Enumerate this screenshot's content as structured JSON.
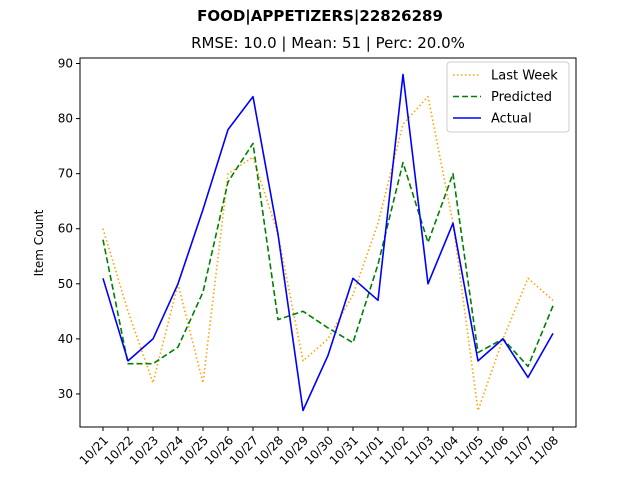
{
  "chart_data": {
    "type": "line",
    "title": "FOOD|APPETIZERS|22826289",
    "subtitle": "RMSE: 10.0 | Mean: 51 | Perc: 20.0%",
    "xlabel": "",
    "ylabel": "Item Count",
    "ylim": [
      24,
      91
    ],
    "yticks": [
      30,
      40,
      50,
      60,
      70,
      80,
      90
    ],
    "legend_position": "top-right",
    "grid": false,
    "categories": [
      "10/21",
      "10/22",
      "10/23",
      "10/24",
      "10/25",
      "10/26",
      "10/27",
      "10/28",
      "10/29",
      "10/30",
      "10/31",
      "11/01",
      "11/02",
      "11/03",
      "11/04",
      "11/05",
      "11/06",
      "11/07",
      "11/08"
    ],
    "series": [
      {
        "name": "Last Week",
        "color": "#ffa500",
        "style": "dotted",
        "values": [
          60,
          45,
          32,
          50,
          32,
          70,
          73,
          59,
          36,
          40,
          48,
          61,
          79,
          84,
          61,
          27,
          40,
          51,
          47
        ]
      },
      {
        "name": "Predicted",
        "color": "#008000",
        "style": "dashed",
        "values": [
          58,
          35.5,
          35.5,
          38.5,
          48.5,
          68.5,
          75.5,
          43.5,
          45,
          42,
          39.3,
          53.5,
          72,
          57.5,
          70,
          37.5,
          40,
          35,
          46
        ]
      },
      {
        "name": "Actual",
        "color": "#0000ff",
        "style": "solid",
        "values": [
          51,
          36,
          40,
          50,
          63.5,
          78,
          84,
          59,
          27,
          37,
          51,
          47,
          88,
          50,
          61,
          36,
          40,
          33,
          41
        ]
      }
    ]
  }
}
